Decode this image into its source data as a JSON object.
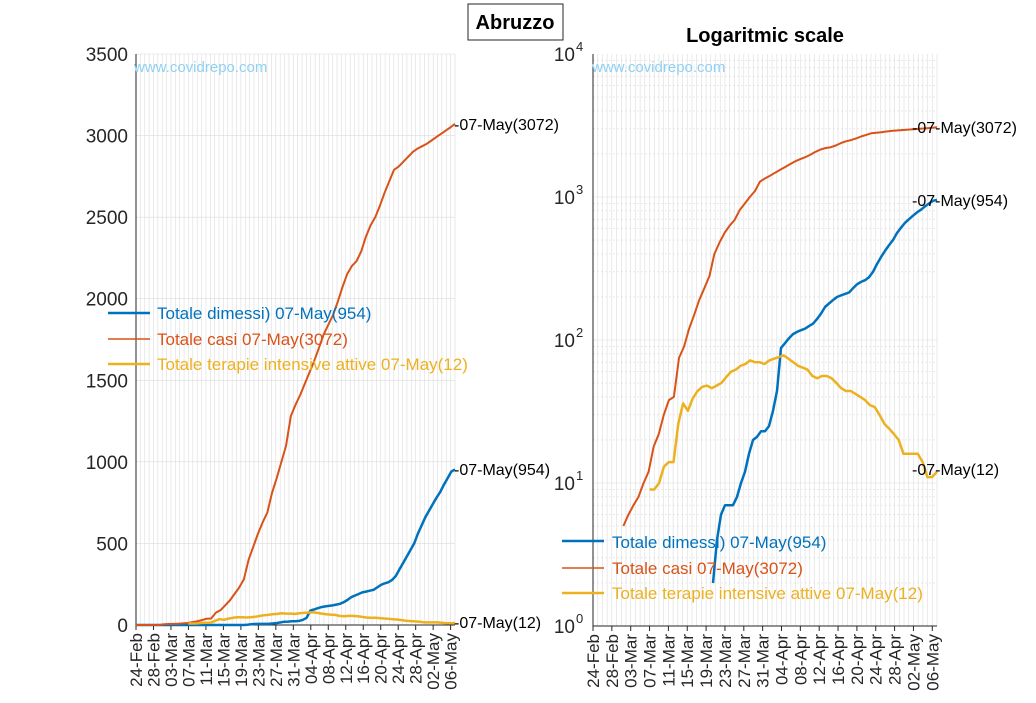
{
  "figure_title": "Abruzzo",
  "watermark": "www.covidrepo.com",
  "colors": {
    "dimessi": "#0072BD",
    "casi": "#D95319",
    "terapie": "#EDB120",
    "grid": "#dcdcdc",
    "axis": "#262626"
  },
  "chart_data": [
    {
      "type": "line",
      "title": "",
      "scale": "linear",
      "ylim": [
        0,
        3500
      ],
      "yticks": [
        "0",
        "500",
        "1000",
        "1500",
        "2000",
        "2500",
        "3000",
        "3500"
      ],
      "xticks": [
        "24-Feb",
        "28-Feb",
        "03-Mar",
        "07-Mar",
        "11-Mar",
        "15-Mar",
        "19-Mar",
        "23-Mar",
        "27-Mar",
        "31-Mar",
        "04-Apr",
        "08-Apr",
        "12-Apr",
        "16-Apr",
        "20-Apr",
        "24-Apr",
        "28-Apr",
        "02-May",
        "06-May"
      ],
      "grid": true,
      "legend_position": "middle-left",
      "legend": [
        "Totale dimessi) 07-May(954)",
        "Totale casi 07-May(3072)",
        "Totale terapie intensive attive 07-May(12)"
      ],
      "end_labels": [
        "-07-May(3072)",
        "-07-May(954)",
        "-07-May(12)"
      ],
      "series": [
        {
          "name": "Totale dimessi) 07-May(954)",
          "key": "dimessi",
          "start": "24-Feb",
          "values": [
            0,
            0,
            0,
            0,
            0,
            0,
            0,
            0,
            0,
            0,
            0,
            0,
            0,
            0,
            0,
            0,
            0,
            0,
            0,
            0,
            0,
            0,
            0,
            0,
            0,
            0,
            0,
            0,
            0,
            0,
            2,
            4,
            6,
            7,
            7,
            7,
            8,
            10,
            12,
            16,
            20,
            21,
            23,
            23,
            25,
            32,
            44,
            88,
            95,
            103,
            110,
            114,
            117,
            120,
            125,
            130,
            140,
            153,
            170,
            180,
            190,
            200,
            205,
            210,
            215,
            230,
            245,
            255,
            262,
            275,
            300,
            340,
            380,
            420,
            460,
            500,
            560,
            610,
            660,
            700,
            740,
            780,
            815,
            860,
            900,
            940,
            954
          ]
        },
        {
          "name": "Totale casi 07-May(3072)",
          "key": "casi",
          "start": "24-Feb",
          "values": [
            0,
            0,
            0,
            0,
            0,
            0,
            5,
            6,
            7,
            8,
            10,
            12,
            18,
            22,
            30,
            38,
            40,
            75,
            90,
            120,
            150,
            190,
            230,
            280,
            400,
            480,
            560,
            630,
            690,
            810,
            900,
            1000,
            1100,
            1280,
            1350,
            1410,
            1480,
            1550,
            1620,
            1700,
            1780,
            1840,
            1900,
            1980,
            2070,
            2150,
            2200,
            2230,
            2290,
            2380,
            2450,
            2500,
            2570,
            2650,
            2720,
            2790,
            2810,
            2840,
            2870,
            2900,
            2920,
            2935,
            2950,
            2970,
            2990,
            3010,
            3030,
            3050,
            3072
          ]
        },
        {
          "name": "Totale terapie intensive attive 07-May(12)",
          "key": "terapie",
          "start": "07-Mar",
          "values": [
            9,
            9,
            10,
            13,
            14,
            14,
            26,
            36,
            32,
            39,
            44,
            47,
            48,
            46,
            48,
            50,
            55,
            60,
            62,
            66,
            68,
            72,
            70,
            70,
            68,
            72,
            74,
            76,
            78,
            74,
            70,
            66,
            64,
            62,
            56,
            54,
            56,
            56,
            54,
            50,
            46,
            44,
            44,
            42,
            40,
            38,
            35,
            34,
            30,
            26,
            24,
            22,
            20,
            16,
            16,
            16,
            16,
            14,
            11,
            11,
            12
          ]
        }
      ]
    },
    {
      "type": "line",
      "title": "Logaritmic scale",
      "scale": "log",
      "ylim": [
        1,
        10000
      ],
      "yticks": [
        {
          "base": "10",
          "exp": "0"
        },
        {
          "base": "10",
          "exp": "1"
        },
        {
          "base": "10",
          "exp": "2"
        },
        {
          "base": "10",
          "exp": "3"
        },
        {
          "base": "10",
          "exp": "4"
        }
      ],
      "xticks": [
        "24-Feb",
        "28-Feb",
        "03-Mar",
        "07-Mar",
        "11-Mar",
        "15-Mar",
        "19-Mar",
        "23-Mar",
        "27-Mar",
        "31-Mar",
        "04-Apr",
        "08-Apr",
        "12-Apr",
        "16-Apr",
        "20-Apr",
        "24-Apr",
        "28-Apr",
        "02-May",
        "06-May"
      ],
      "grid": true,
      "legend_position": "bottom-left",
      "legend": [
        "Totale dimessi) 07-May(954)",
        "Totale casi 07-May(3072)",
        "Totale terapie intensive attive 07-May(12)"
      ],
      "end_labels": [
        "-07-May(3072)",
        "-07-May(954)",
        "-07-May(12)"
      ]
    }
  ]
}
